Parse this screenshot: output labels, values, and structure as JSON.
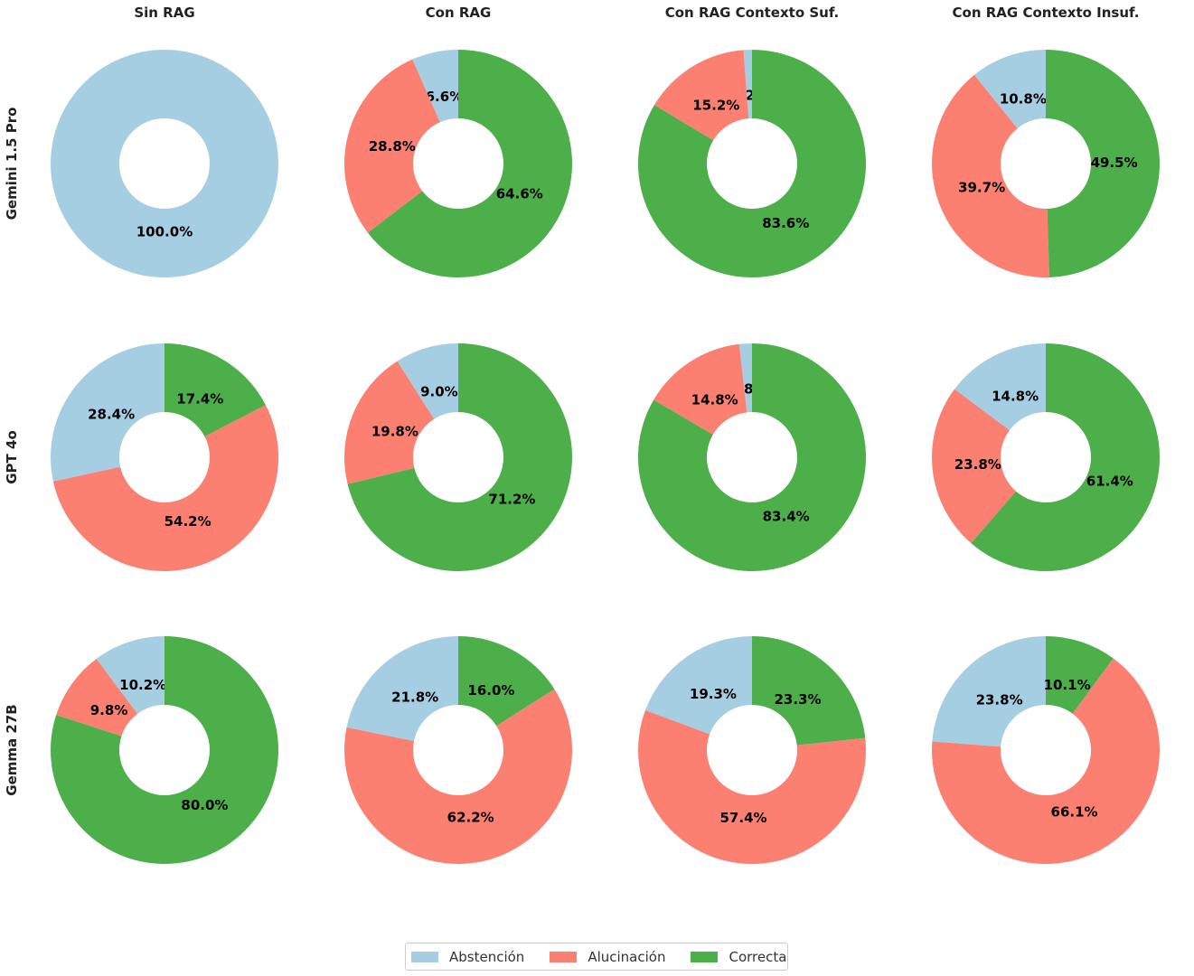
{
  "colors": {
    "Abstención": "#a6cee3",
    "Alucinación": "#fb8072",
    "Correcta": "#4daf4a"
  },
  "chart_data": {
    "type": "pie",
    "variant": "donut",
    "columns": [
      "Sin RAG",
      "Con RAG",
      "Con RAG Contexto Suf.",
      "Con RAG Contexto Insuf."
    ],
    "rows": [
      "Gemini 1.5 Pro",
      "GPT 4o",
      "Gemma 27B"
    ],
    "categories": [
      "Abstención",
      "Alucinación",
      "Correcta"
    ],
    "legend": {
      "placement": "bottom-center",
      "entries": [
        "Abstención",
        "Alucinación",
        "Correcta"
      ]
    },
    "panels": [
      [
        {
          "values": [
            100.0,
            0.0,
            0.0
          ],
          "labels": [
            "100.0%",
            "",
            ""
          ]
        },
        {
          "values": [
            6.6,
            28.8,
            64.6
          ],
          "labels": [
            "6.6%",
            "28.8%",
            "64.6%"
          ]
        },
        {
          "values": [
            1.2,
            15.2,
            83.6
          ],
          "labels": [
            "1.2%",
            "15.2%",
            "83.6%"
          ]
        },
        {
          "values": [
            10.8,
            39.7,
            49.5
          ],
          "labels": [
            "10.8%",
            "39.7%",
            "49.5%"
          ]
        }
      ],
      [
        {
          "values": [
            28.4,
            54.2,
            17.4
          ],
          "labels": [
            "28.4%",
            "54.2%",
            "17.4%"
          ]
        },
        {
          "values": [
            9.0,
            19.8,
            71.2
          ],
          "labels": [
            "9.0%",
            "19.8%",
            "71.2%"
          ]
        },
        {
          "values": [
            1.8,
            14.8,
            83.4
          ],
          "labels": [
            "1.8%",
            "14.8%",
            "83.4%"
          ]
        },
        {
          "values": [
            14.8,
            23.8,
            61.4
          ],
          "labels": [
            "14.8%",
            "23.8%",
            "61.4%"
          ]
        }
      ],
      [
        {
          "values": [
            10.2,
            9.8,
            80.0
          ],
          "labels": [
            "10.2%",
            "9.8%",
            "80.0%"
          ]
        },
        {
          "values": [
            21.8,
            62.2,
            16.0
          ],
          "labels": [
            "21.8%",
            "62.2%",
            "16.0%"
          ]
        },
        {
          "values": [
            19.3,
            57.4,
            23.3
          ],
          "labels": [
            "19.3%",
            "57.4%",
            "23.3%"
          ]
        },
        {
          "values": [
            23.8,
            66.1,
            10.1
          ],
          "labels": [
            "23.8%",
            "66.1%",
            "10.1%"
          ]
        }
      ]
    ]
  }
}
